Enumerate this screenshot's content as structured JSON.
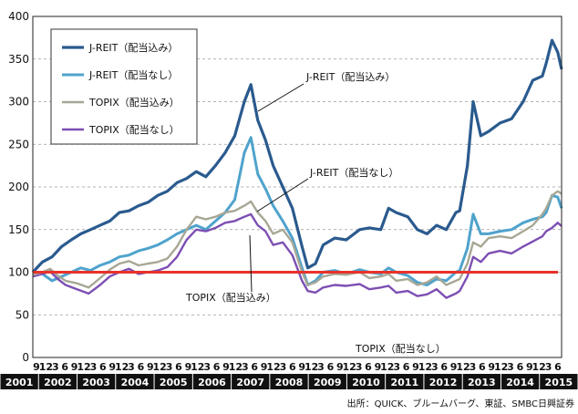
{
  "chart_data": {
    "type": "line",
    "xlabel": "",
    "ylabel": "",
    "ylim": [
      0,
      400
    ],
    "yticks": [
      0,
      50,
      100,
      150,
      200,
      250,
      300,
      350,
      400
    ],
    "year_labels": [
      "2001",
      "2002",
      "2003",
      "2004",
      "2005",
      "2006",
      "2007",
      "2008",
      "2009",
      "2010",
      "2011",
      "2012",
      "2013",
      "2014",
      "2015"
    ],
    "month_labels": [
      "9",
      "12",
      "3",
      "6",
      "9",
      "12",
      "3",
      "6",
      "9",
      "12",
      "3",
      "6",
      "9",
      "12",
      "3",
      "6",
      "9",
      "12",
      "3",
      "6",
      "9",
      "12",
      "3",
      "6",
      "9",
      "12",
      "3",
      "6",
      "9",
      "12",
      "3",
      "6",
      "9",
      "12",
      "3",
      "6",
      "9",
      "12",
      "3",
      "6",
      "9",
      "12",
      "3",
      "6",
      "9",
      "12",
      "3",
      "6",
      "9",
      "12",
      "3",
      "6",
      "9",
      "12",
      "3",
      "6"
    ],
    "x_start": 2001.75,
    "x_end": 2015.5,
    "baseline": 100,
    "baseline_color": "#e8322a",
    "series": [
      {
        "name": "J-REIT（配当込み）",
        "color": "#2a5a8e",
        "width": 3.2,
        "x": [
          2001.75,
          2002.0,
          2002.25,
          2002.5,
          2002.75,
          2003.0,
          2003.25,
          2003.5,
          2003.75,
          2004.0,
          2004.25,
          2004.5,
          2004.75,
          2005.0,
          2005.25,
          2005.5,
          2005.75,
          2006.0,
          2006.25,
          2006.5,
          2006.75,
          2007.0,
          2007.25,
          2007.42,
          2007.6,
          2007.8,
          2008.0,
          2008.25,
          2008.5,
          2008.75,
          2008.9,
          2009.1,
          2009.3,
          2009.6,
          2009.9,
          2010.25,
          2010.5,
          2010.8,
          2011.0,
          2011.2,
          2011.5,
          2011.75,
          2012.0,
          2012.25,
          2012.5,
          2012.75,
          2012.85,
          2013.05,
          2013.2,
          2013.4,
          2013.6,
          2013.9,
          2014.2,
          2014.5,
          2014.75,
          2015.0,
          2015.1,
          2015.25,
          2015.4,
          2015.5
        ],
        "values": [
          100,
          112,
          118,
          130,
          138,
          145,
          150,
          155,
          160,
          170,
          172,
          178,
          182,
          190,
          195,
          205,
          210,
          218,
          212,
          225,
          240,
          260,
          300,
          320,
          278,
          255,
          225,
          200,
          175,
          130,
          105,
          110,
          132,
          140,
          138,
          150,
          152,
          150,
          175,
          170,
          165,
          150,
          145,
          155,
          150,
          170,
          172,
          225,
          300,
          260,
          265,
          275,
          280,
          300,
          325,
          330,
          345,
          372,
          358,
          338
        ]
      },
      {
        "name": "J-REIT（配当なし）",
        "color": "#4fa3cc",
        "width": 3,
        "x": [
          2001.75,
          2002.0,
          2002.25,
          2002.5,
          2002.75,
          2003.0,
          2003.25,
          2003.5,
          2003.75,
          2004.0,
          2004.25,
          2004.5,
          2004.75,
          2005.0,
          2005.25,
          2005.5,
          2005.75,
          2006.0,
          2006.25,
          2006.5,
          2006.75,
          2007.0,
          2007.25,
          2007.42,
          2007.6,
          2007.8,
          2008.0,
          2008.25,
          2008.5,
          2008.75,
          2008.9,
          2009.1,
          2009.3,
          2009.6,
          2009.9,
          2010.25,
          2010.5,
          2010.8,
          2011.0,
          2011.2,
          2011.5,
          2011.75,
          2012.0,
          2012.25,
          2012.5,
          2012.75,
          2012.85,
          2013.05,
          2013.2,
          2013.4,
          2013.6,
          2013.9,
          2014.2,
          2014.5,
          2014.75,
          2015.0,
          2015.1,
          2015.25,
          2015.4,
          2015.5
        ],
        "values": [
          100,
          98,
          90,
          95,
          100,
          105,
          102,
          108,
          112,
          118,
          120,
          125,
          128,
          132,
          138,
          145,
          150,
          155,
          150,
          160,
          170,
          185,
          240,
          258,
          215,
          198,
          178,
          160,
          140,
          105,
          85,
          90,
          100,
          102,
          98,
          103,
          100,
          98,
          105,
          100,
          96,
          88,
          85,
          92,
          90,
          100,
          102,
          128,
          168,
          145,
          145,
          148,
          150,
          158,
          162,
          165,
          170,
          190,
          188,
          175
        ]
      },
      {
        "name": "TOPIX（配当込み）",
        "color": "#a8a795",
        "width": 2.4,
        "x": [
          2001.75,
          2002.0,
          2002.2,
          2002.4,
          2002.6,
          2002.9,
          2003.2,
          2003.5,
          2003.75,
          2004.0,
          2004.25,
          2004.5,
          2004.75,
          2005.0,
          2005.25,
          2005.5,
          2005.75,
          2006.0,
          2006.25,
          2006.5,
          2006.75,
          2007.0,
          2007.25,
          2007.42,
          2007.6,
          2007.8,
          2008.0,
          2008.25,
          2008.5,
          2008.75,
          2008.9,
          2009.1,
          2009.3,
          2009.6,
          2009.9,
          2010.25,
          2010.5,
          2010.8,
          2011.0,
          2011.2,
          2011.5,
          2011.75,
          2012.0,
          2012.25,
          2012.5,
          2012.75,
          2012.85,
          2013.05,
          2013.2,
          2013.4,
          2013.6,
          2013.9,
          2014.2,
          2014.5,
          2014.75,
          2015.0,
          2015.1,
          2015.25,
          2015.4,
          2015.5
        ],
        "values": [
          97,
          100,
          104,
          96,
          90,
          87,
          82,
          93,
          103,
          110,
          113,
          108,
          110,
          112,
          116,
          130,
          150,
          165,
          162,
          165,
          170,
          172,
          178,
          183,
          170,
          160,
          145,
          150,
          135,
          100,
          85,
          88,
          95,
          98,
          97,
          100,
          93,
          95,
          98,
          90,
          92,
          85,
          88,
          95,
          85,
          90,
          92,
          110,
          135,
          130,
          140,
          142,
          140,
          148,
          155,
          168,
          175,
          190,
          195,
          192
        ]
      },
      {
        "name": "TOPIX（配当なし）",
        "color": "#7d4fb3",
        "width": 2.4,
        "x": [
          2001.75,
          2002.0,
          2002.2,
          2002.4,
          2002.6,
          2002.9,
          2003.2,
          2003.5,
          2003.75,
          2004.0,
          2004.25,
          2004.5,
          2004.75,
          2005.0,
          2005.25,
          2005.5,
          2005.75,
          2006.0,
          2006.25,
          2006.5,
          2006.75,
          2007.0,
          2007.25,
          2007.42,
          2007.6,
          2007.8,
          2008.0,
          2008.25,
          2008.5,
          2008.75,
          2008.9,
          2009.1,
          2009.3,
          2009.6,
          2009.9,
          2010.25,
          2010.5,
          2010.8,
          2011.0,
          2011.2,
          2011.5,
          2011.75,
          2012.0,
          2012.25,
          2012.5,
          2012.75,
          2012.85,
          2013.05,
          2013.2,
          2013.4,
          2013.6,
          2013.9,
          2014.2,
          2014.5,
          2014.75,
          2015.0,
          2015.1,
          2015.25,
          2015.4,
          2015.5
        ],
        "values": [
          95,
          98,
          101,
          92,
          85,
          80,
          75,
          85,
          95,
          100,
          104,
          98,
          100,
          102,
          106,
          118,
          138,
          150,
          148,
          152,
          158,
          160,
          165,
          168,
          155,
          148,
          132,
          135,
          120,
          90,
          78,
          76,
          82,
          85,
          84,
          86,
          80,
          82,
          84,
          76,
          78,
          72,
          74,
          80,
          70,
          75,
          78,
          95,
          118,
          112,
          122,
          125,
          122,
          130,
          136,
          142,
          148,
          152,
          158,
          154
        ]
      }
    ],
    "annotations": [
      {
        "text": "J-REIT（配当込み）",
        "series": 0
      },
      {
        "text": "J-REIT（配当なし）",
        "series": 1
      },
      {
        "text": "TOPIX（配当込み）",
        "series": 2
      },
      {
        "text": "TOPIX（配当なし）",
        "series": 3
      }
    ],
    "source": "出所：QUICK、ブルームバーグ、東証、SMBC日興証券"
  }
}
